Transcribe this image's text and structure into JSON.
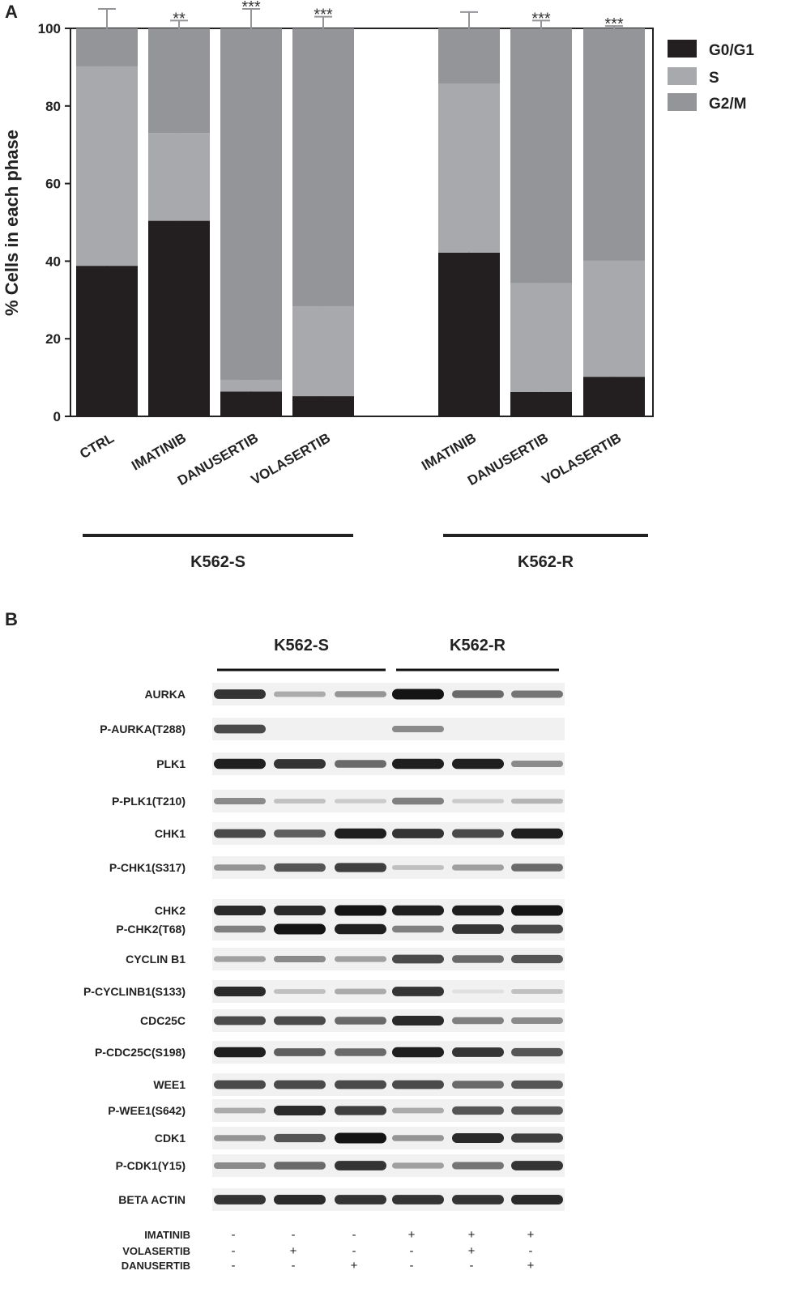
{
  "panelA": {
    "letter": "A",
    "chart_data": {
      "type": "bar",
      "stacked": true,
      "ylabel": "% Cells in each phase",
      "ylim": [
        0,
        100
      ],
      "yticks": [
        0,
        20,
        40,
        60,
        80,
        100
      ],
      "categories": [
        "CTRL",
        "IMATINIB",
        "DANUSERTIB",
        "VOLASERTIB",
        "IMATINIB",
        "DANUSERTIB",
        "VOLASERTIB"
      ],
      "groups": [
        {
          "name": "K562-S",
          "members": [
            0,
            1,
            2,
            3
          ]
        },
        {
          "name": "K562-R",
          "members": [
            4,
            5,
            6
          ]
        }
      ],
      "series": [
        {
          "name": "G0/G1",
          "color": "#231f20",
          "values": [
            38.8,
            50.4,
            6.4,
            5.2,
            42.2,
            6.3,
            10.2
          ],
          "errors": [
            2.2,
            2.3,
            2.2,
            1.1,
            3.3,
            2.2,
            2.5
          ],
          "sig": [
            "",
            "***",
            "***",
            "***",
            "",
            "***",
            "***"
          ]
        },
        {
          "name": "S",
          "color": "#a7a9ac",
          "values": [
            51.4,
            22.6,
            3.0,
            23.2,
            43.6,
            28.0,
            29.9
          ],
          "errors": [
            3.1,
            2.5,
            0,
            3.5,
            2.1,
            1.9,
            2.0
          ],
          "sig": [
            "",
            "***",
            "***",
            "***",
            "",
            "***",
            "***"
          ]
        },
        {
          "name": "G2/M",
          "color": "#939598",
          "values": [
            9.8,
            27.0,
            90.6,
            71.6,
            14.2,
            65.7,
            59.9
          ],
          "errors": [
            5.0,
            2.0,
            5.0,
            3.0,
            4.2,
            2.0,
            0.6
          ],
          "sig": [
            "",
            "**",
            "***",
            "***",
            "",
            "***",
            "***"
          ]
        }
      ],
      "legend": "top-right",
      "grid": false
    }
  },
  "panelB": {
    "letter": "B",
    "groups": [
      "K562-S",
      "K562-R"
    ],
    "proteins": [
      {
        "label": "AURKA",
        "intensity": [
          0.85,
          0.3,
          0.4,
          1.0,
          0.6,
          0.55
        ]
      },
      {
        "label": "P-AURKA(T288)",
        "intensity": [
          0.75,
          0,
          0,
          0.45,
          0,
          0
        ]
      },
      {
        "label": "PLK1",
        "intensity": [
          0.95,
          0.85,
          0.6,
          0.95,
          0.95,
          0.45
        ]
      },
      {
        "label": "P-PLK1(T210)",
        "intensity": [
          0.45,
          0.2,
          0.15,
          0.5,
          0.15,
          0.25
        ]
      },
      {
        "label": "CHK1",
        "intensity": [
          0.75,
          0.65,
          0.95,
          0.85,
          0.75,
          0.95
        ]
      },
      {
        "label": "P-CHK1(S317)",
        "intensity": [
          0.4,
          0.7,
          0.8,
          0.2,
          0.35,
          0.6
        ]
      },
      {
        "label": "CHK2",
        "intensity": [
          0.9,
          0.9,
          1.0,
          0.95,
          0.95,
          1.0
        ]
      },
      {
        "label": "P-CHK2(T68)",
        "intensity": [
          0.5,
          1.0,
          0.95,
          0.5,
          0.85,
          0.75
        ]
      },
      {
        "label": "CYCLIN B1",
        "intensity": [
          0.35,
          0.45,
          0.35,
          0.75,
          0.6,
          0.7
        ]
      },
      {
        "label": "P-CYCLINB1(S133)",
        "intensity": [
          0.9,
          0.2,
          0.3,
          0.85,
          0.05,
          0.2
        ]
      },
      {
        "label": "CDC25C",
        "intensity": [
          0.75,
          0.75,
          0.6,
          0.9,
          0.5,
          0.45
        ]
      },
      {
        "label": "P-CDC25C(S198)",
        "intensity": [
          0.95,
          0.65,
          0.6,
          0.95,
          0.85,
          0.7
        ]
      },
      {
        "label": "WEE1",
        "intensity": [
          0.75,
          0.75,
          0.75,
          0.75,
          0.6,
          0.7
        ]
      },
      {
        "label": "P-WEE1(S642)",
        "intensity": [
          0.3,
          0.9,
          0.8,
          0.3,
          0.7,
          0.7
        ]
      },
      {
        "label": "CDK1",
        "intensity": [
          0.4,
          0.7,
          1.0,
          0.4,
          0.9,
          0.8
        ]
      },
      {
        "label": "P-CDK1(Y15)",
        "intensity": [
          0.45,
          0.6,
          0.85,
          0.35,
          0.55,
          0.85
        ]
      },
      {
        "label": "BETA ACTIN",
        "intensity": [
          0.85,
          0.9,
          0.85,
          0.85,
          0.85,
          0.9
        ]
      }
    ],
    "treatments": [
      {
        "label": "IMATINIB",
        "signs": [
          "-",
          "-",
          "-",
          "+",
          "+",
          "+"
        ]
      },
      {
        "label": "VOLASERTIB",
        "signs": [
          "-",
          "+",
          "-",
          "-",
          "+",
          "-"
        ]
      },
      {
        "label": "DANUSERTIB",
        "signs": [
          "-",
          "-",
          "+",
          "-",
          "-",
          "+"
        ]
      }
    ]
  }
}
